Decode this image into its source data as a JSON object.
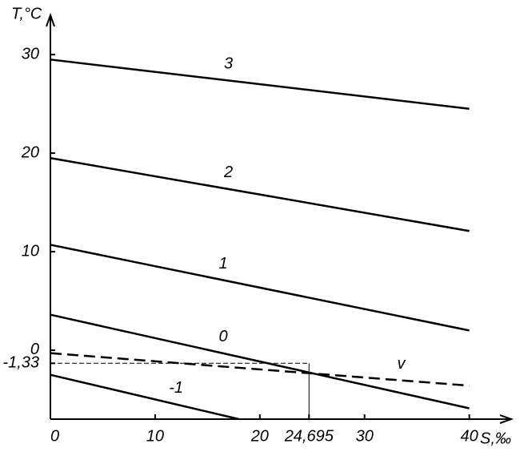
{
  "chart_data": {
    "type": "line",
    "y_label": "T,°C",
    "x_label": "S,‰",
    "xlim": [
      0,
      44
    ],
    "ylim": [
      -7,
      34
    ],
    "xticks": [
      0,
      10,
      20,
      {
        "value": 24.695,
        "label": "24,695"
      },
      30,
      40
    ],
    "yticks": [
      {
        "value": -1.33,
        "label": "-1,33"
      },
      0,
      10,
      20,
      30
    ],
    "color": "#000000",
    "series": [
      {
        "name": "3",
        "x": [
          0,
          40
        ],
        "values": [
          29.5,
          24.5
        ],
        "style": "solid"
      },
      {
        "name": "2",
        "x": [
          0,
          40
        ],
        "values": [
          19.5,
          12.1
        ],
        "style": "solid"
      },
      {
        "name": "1",
        "x": [
          0,
          40
        ],
        "values": [
          10.7,
          2.0
        ],
        "style": "solid"
      },
      {
        "name": "0",
        "x": [
          0,
          40
        ],
        "values": [
          3.6,
          -5.9
        ],
        "style": "solid"
      },
      {
        "name": "-1",
        "x": [
          0,
          18
        ],
        "values": [
          -2.5,
          -7
        ],
        "style": "solid"
      },
      {
        "name": "v",
        "x": [
          0,
          40
        ],
        "values": [
          -0.3,
          -3.6
        ],
        "style": "dashed"
      }
    ]
  }
}
